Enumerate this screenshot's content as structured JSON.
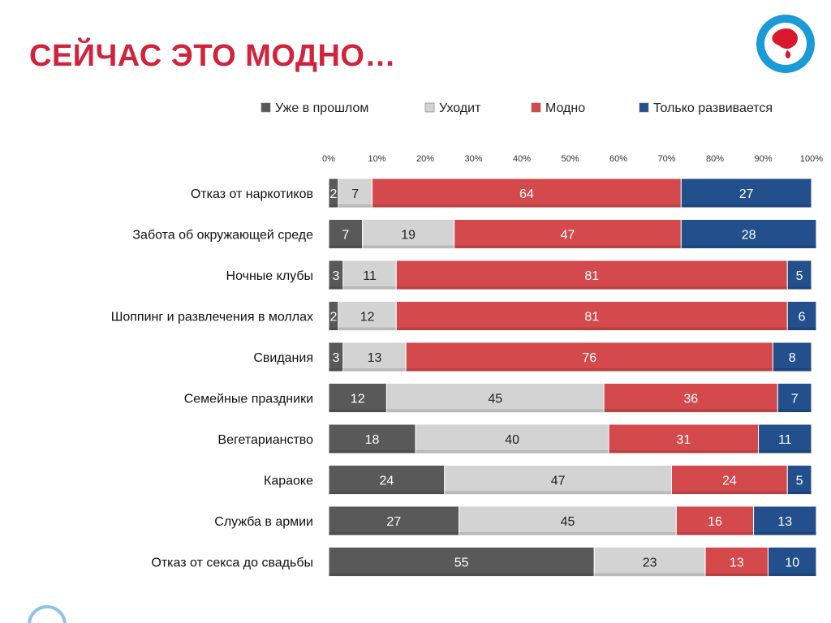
{
  "page": {
    "title": "СЕЙЧАС ЭТО МОДНО…"
  },
  "logo": {
    "icon": "globe-logo-icon"
  },
  "colors": {
    "title": "#d0243c",
    "past": "#595959",
    "leaving": "#d3d3d3",
    "fashion": "#d44a4c",
    "developing": "#234f8c",
    "logo_ring": "#1a9ad6",
    "logo_globe": "#d9182e"
  },
  "chart_data": {
    "type": "bar",
    "orientation": "horizontal",
    "stacked": true,
    "percent_stacked": true,
    "xlim": [
      0,
      100
    ],
    "x_ticks": [
      "0%",
      "10%",
      "20%",
      "30%",
      "40%",
      "50%",
      "60%",
      "70%",
      "80%",
      "90%",
      "100%"
    ],
    "legend_position": "top",
    "categories": [
      "Отказ от наркотиков",
      "Забота об окружающей среде",
      "Ночные клубы",
      "Шоппинг и развлечения  в моллах",
      "Свидания",
      "Семейные  праздники",
      "Вегетарианство",
      "Караоке",
      "Служба в армии",
      "Отказ от секса до свадьбы"
    ],
    "series": [
      {
        "name": "Уже в прошлом",
        "color_key": "past",
        "values": [
          2,
          7,
          3,
          2,
          3,
          12,
          18,
          24,
          27,
          55
        ]
      },
      {
        "name": "Уходит",
        "color_key": "leaving",
        "values": [
          7,
          19,
          11,
          12,
          13,
          45,
          40,
          47,
          45,
          23
        ]
      },
      {
        "name": "Модно",
        "color_key": "fashion",
        "values": [
          64,
          47,
          81,
          81,
          76,
          36,
          31,
          24,
          16,
          13
        ]
      },
      {
        "name": "Только развивается",
        "color_key": "developing",
        "values": [
          27,
          28,
          5,
          6,
          8,
          7,
          11,
          5,
          13,
          10
        ]
      }
    ]
  }
}
